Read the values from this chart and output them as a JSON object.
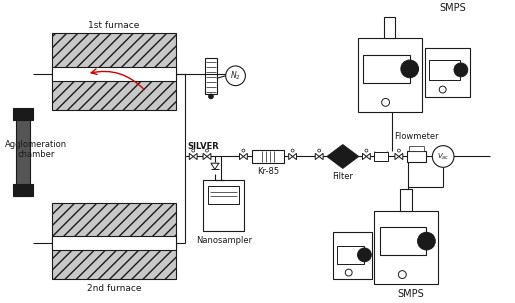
{
  "bg_color": "#ffffff",
  "line_color": "#1a1a1a",
  "labels": {
    "furnace1": "1st furnace",
    "furnace2": "2nd furnace",
    "agglom": "Agglomeration\nchamber",
    "silver": "SILVER",
    "kr85": "Kr-85",
    "filter": "Filter",
    "flowmeter": "Flowmeter",
    "nanosampler": "Nanosampler",
    "smps_top": "SMPS",
    "smps_bot": "SMPS",
    "n2": "N2",
    "vac": "Vac"
  }
}
